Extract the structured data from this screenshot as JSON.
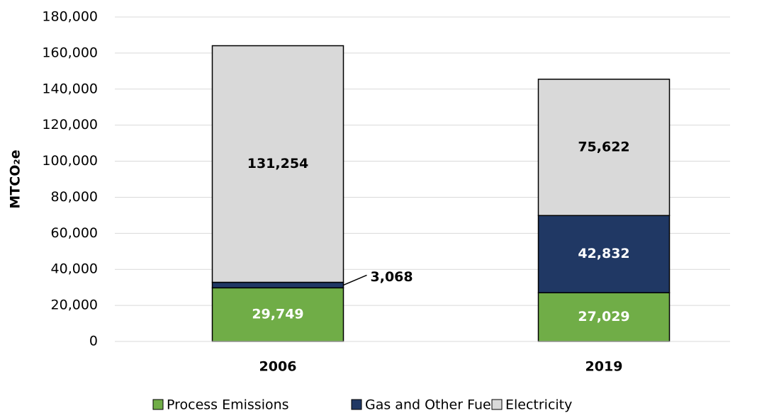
{
  "chart_data": {
    "type": "stacked_bar",
    "y_label": "MTCO₂e",
    "categories": [
      "2006",
      "2019"
    ],
    "series": [
      {
        "name": "Process Emissions",
        "color": "#70ad47",
        "label_color": "#ffffff",
        "values": [
          29749,
          27029
        ],
        "value_labels": [
          "29,749",
          "27,029"
        ]
      },
      {
        "name": "Gas and Other Fuels",
        "color": "#203864",
        "label_color": "#ffffff",
        "values": [
          3068,
          42832
        ],
        "value_labels": [
          "3,068",
          "42,832"
        ]
      },
      {
        "name": "Electricity",
        "color": "#d9d9d9",
        "label_color": "#000000",
        "values": [
          131254,
          75622
        ],
        "value_labels": [
          "131,254",
          "75,622"
        ]
      }
    ],
    "ylim": [
      0,
      180000
    ],
    "yticks": [
      0,
      {
        "value": 20000,
        "label": "20,000"
      },
      {
        "value": 40000,
        "label": "40,000"
      },
      {
        "value": 60000,
        "label": "60,000"
      },
      {
        "value": 80000,
        "label": "80,000"
      },
      {
        "value": 100000,
        "label": "100,000"
      },
      {
        "value": 120000,
        "label": "120,000"
      },
      {
        "value": 140000,
        "label": "140,000"
      },
      {
        "value": 160000,
        "label": "160,000"
      },
      {
        "value": 180000,
        "label": "180,000"
      }
    ],
    "grid": true,
    "legend": "bottom"
  }
}
